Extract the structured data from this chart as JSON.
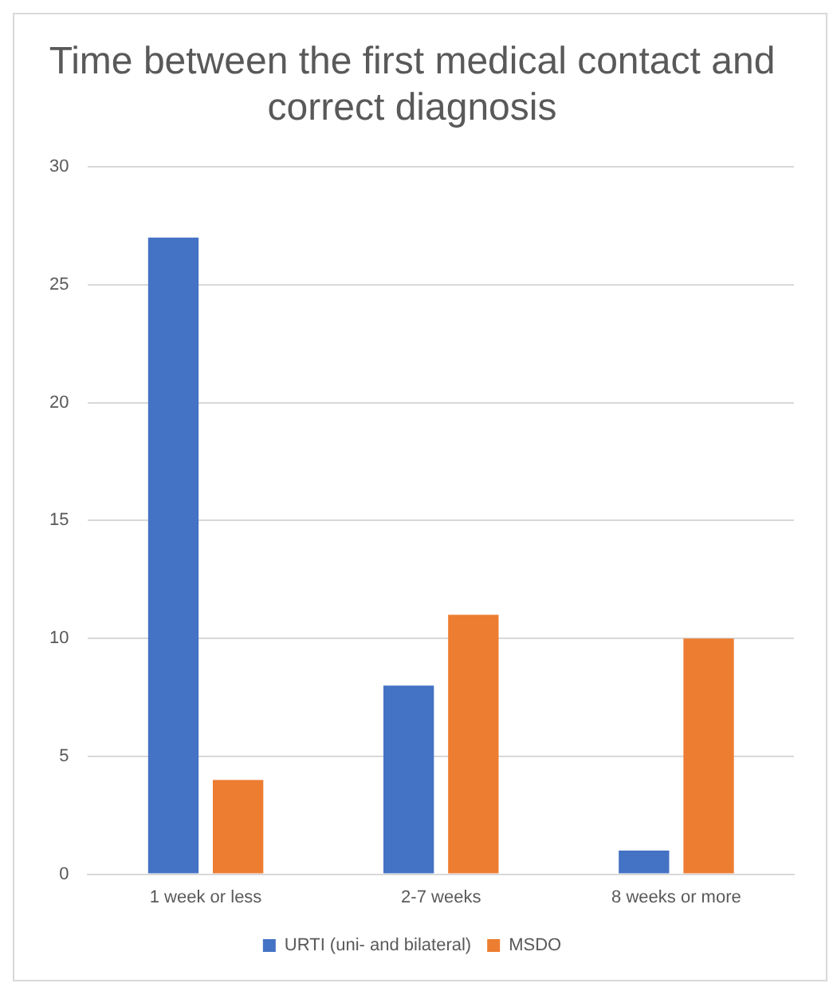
{
  "chart_data": {
    "type": "bar",
    "title": "Time between the first medical contact and correct diagnosis",
    "categories": [
      "1 week or less",
      "2-7 weeks",
      "8 weeks or more"
    ],
    "series": [
      {
        "name": "URTI (uni- and bilateral)",
        "color": "#4472c4",
        "values": [
          27,
          8,
          1
        ]
      },
      {
        "name": "MSDO",
        "color": "#ed7d31",
        "values": [
          4,
          11,
          10
        ]
      }
    ],
    "ylim": [
      0,
      30
    ],
    "yticks": [
      0,
      5,
      10,
      15,
      20,
      25,
      30
    ],
    "grid": "y",
    "legend": "bottom"
  }
}
